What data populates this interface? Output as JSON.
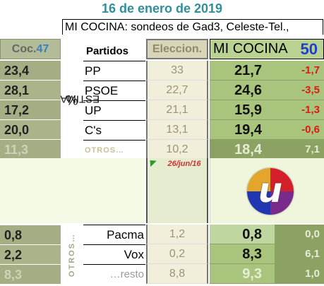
{
  "date": "16 de enero de 2019",
  "subtitle": "MI COCINA: sondeos de Gad3, Celeste-Tel.,",
  "coc_header": {
    "label": "Coc.",
    "number": "47"
  },
  "vertical_label": {
    "pct": "%",
    "text": "ESTIMADO"
  },
  "partidos_header": "Partidos",
  "elecciones_header": "Eleccion.",
  "mi_cocina_header": {
    "label": "MI COCINA",
    "number": "50"
  },
  "main_rows": [
    {
      "coc": "23,4",
      "party": "PP",
      "elec": "33",
      "mi": "21,7",
      "diff": "-1,7"
    },
    {
      "coc": "28,1",
      "party": "PSOE",
      "elec": "22,7",
      "mi": "24,6",
      "diff": "-3,5"
    },
    {
      "coc": "17,2",
      "party": "UP",
      "elec": "21,1",
      "mi": "15,9",
      "diff": "-1,3"
    },
    {
      "coc": "20,0",
      "party": "C's",
      "elec": "13,1",
      "mi": "19,4",
      "diff": "-0,6"
    },
    {
      "coc": "11,3",
      "party": "OTROS…",
      "elec": "10,2",
      "mi": "18,4",
      "diff": "7,1"
    }
  ],
  "election_date": "26/jun/16",
  "logo_letter": "u",
  "otros_vertical": "OTROS…",
  "lower_rows": [
    {
      "coc": "0,8",
      "party": "Pacma",
      "elec": "1,2",
      "mi": "0,8",
      "diff": "0,0"
    },
    {
      "coc": "2,2",
      "party": "Vox",
      "elec": "0,2",
      "mi": "8,3",
      "diff": "6,1"
    },
    {
      "coc": "8,3",
      "party": "…resto",
      "elec": "8,8",
      "mi": "9,3",
      "diff": "1,0"
    }
  ],
  "colors": {
    "title": "#2f8f9b",
    "negative": "#e01818",
    "accent_blue": "#1c3fcf"
  }
}
